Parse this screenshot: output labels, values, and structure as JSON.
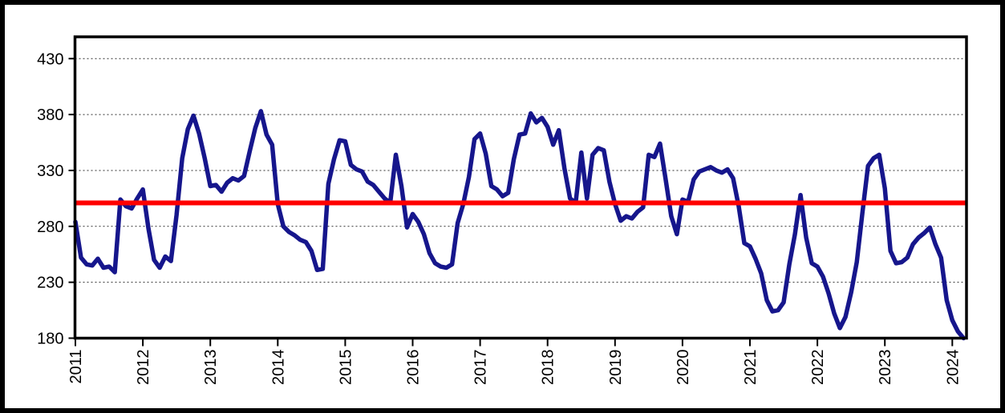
{
  "chart_data": {
    "type": "line",
    "title": "",
    "x_tick_labels": [
      "2011",
      "2012",
      "2013",
      "2014",
      "2015",
      "2016",
      "2017",
      "2018",
      "2019",
      "2020",
      "2021",
      "2022",
      "2023",
      "2024"
    ],
    "y_tick_labels": [
      "430",
      "380",
      "330",
      "280",
      "230",
      "180"
    ],
    "y_ticks": [
      430,
      380,
      330,
      280,
      230,
      180
    ],
    "ylim": [
      180,
      450
    ],
    "grid": "horizontal-dotted",
    "legend_position": "none",
    "x_start": "2011-01",
    "x_frequency": "monthly",
    "series": [
      {
        "name": "monthly-values",
        "color": "#16168C",
        "values": [
          284,
          252,
          246,
          245,
          251,
          243,
          244,
          239,
          304,
          298,
          296,
          305,
          313,
          278,
          250,
          243,
          253,
          249,
          290,
          341,
          367,
          379,
          363,
          341,
          316,
          317,
          311,
          319,
          323,
          321,
          325,
          347,
          368,
          383,
          362,
          353,
          300,
          280,
          275,
          272,
          268,
          266,
          258,
          241,
          242,
          318,
          340,
          357,
          356,
          335,
          331,
          329,
          320,
          317,
          311,
          305,
          301,
          344,
          316,
          279,
          291,
          284,
          273,
          256,
          247,
          244,
          243,
          246,
          283,
          300,
          324,
          358,
          363,
          345,
          316,
          313,
          307,
          310,
          340,
          362,
          363,
          381,
          373,
          377,
          369,
          353,
          366,
          332,
          305,
          301,
          346,
          305,
          344,
          350,
          348,
          320,
          300,
          285,
          289,
          287,
          293,
          297,
          344,
          342,
          354,
          322,
          289,
          273,
          304,
          302,
          322,
          329,
          331,
          333,
          330,
          328,
          331,
          323,
          298,
          265,
          262,
          251,
          238,
          214,
          204,
          205,
          212,
          246,
          273,
          308,
          270,
          247,
          244,
          235,
          220,
          202,
          189,
          199,
          221,
          248,
          292,
          334,
          341,
          344,
          314,
          258,
          247,
          248,
          252,
          264,
          270,
          274,
          279,
          264,
          252,
          214,
          196,
          186,
          180
        ]
      }
    ],
    "reference_line": {
      "value": 301,
      "color": "#FF0000"
    },
    "axis_color": "#000000",
    "background_color": "#FFFFFF"
  }
}
